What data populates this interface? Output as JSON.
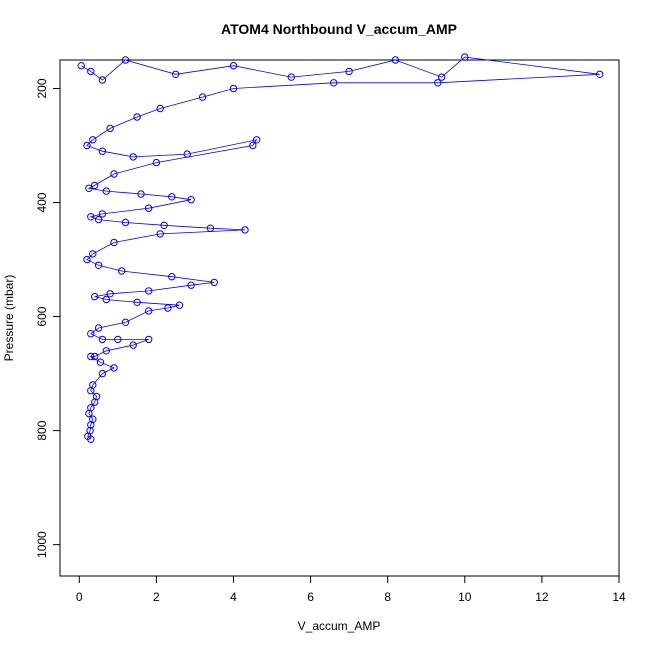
{
  "chart_data": {
    "type": "scatter",
    "title": "ATOM4 Northbound V_accum_AMP",
    "xlabel": "V_accum_AMP",
    "ylabel": "Pressure (mbar)",
    "xlim": [
      -0.5,
      14
    ],
    "ylim": [
      1055,
      150
    ],
    "y_reversed": true,
    "x_ticks": [
      0,
      2,
      4,
      6,
      8,
      10,
      12,
      14
    ],
    "y_ticks": [
      200,
      400,
      600,
      800,
      1000
    ],
    "x_tick_labels": [
      "0",
      "2",
      "4",
      "6",
      "8",
      "10",
      "12",
      "14"
    ],
    "y_tick_labels": [
      "200",
      "400",
      "600",
      "800",
      "1000"
    ],
    "grid": false,
    "legend": "none",
    "marker": "open-circle",
    "connect_points": true,
    "color": "#0000ff",
    "series": [
      {
        "x": [
          0.05,
          0.3,
          0.6,
          1.2,
          2.5,
          4.0,
          5.5,
          7.0,
          8.2,
          9.4,
          10.0,
          13.5,
          9.3,
          6.6,
          4.0,
          3.2,
          2.1,
          1.5,
          0.8,
          0.35,
          0.2,
          0.6,
          1.4,
          2.8,
          4.6,
          4.5,
          2.0,
          0.9,
          0.4,
          0.25,
          0.7,
          1.6,
          2.4,
          2.9,
          1.8,
          0.6,
          0.3,
          0.5,
          1.2,
          2.2,
          3.4,
          4.3,
          2.1,
          0.9,
          0.35,
          0.2,
          0.5,
          1.1,
          2.4,
          3.5,
          2.9,
          1.8,
          0.8,
          0.4,
          0.7,
          1.5,
          2.6,
          2.3,
          1.8,
          1.2,
          0.5,
          0.3,
          0.6,
          1.0,
          1.8,
          1.4,
          0.7,
          0.4,
          0.3,
          0.55,
          0.9,
          0.6,
          0.35,
          0.3,
          0.45,
          0.4,
          0.3,
          0.25,
          0.35,
          0.3,
          0.28,
          0.22,
          0.3
        ],
        "y": [
          160,
          170,
          185,
          150,
          175,
          160,
          180,
          170,
          150,
          180,
          145,
          175,
          190,
          190,
          200,
          215,
          235,
          250,
          270,
          290,
          300,
          310,
          320,
          315,
          290,
          300,
          330,
          350,
          370,
          375,
          380,
          385,
          390,
          395,
          410,
          420,
          425,
          430,
          435,
          440,
          445,
          448,
          455,
          470,
          490,
          500,
          510,
          520,
          530,
          540,
          545,
          555,
          560,
          565,
          570,
          575,
          580,
          585,
          590,
          610,
          620,
          630,
          640,
          640,
          640,
          650,
          660,
          670,
          670,
          680,
          690,
          700,
          720,
          730,
          740,
          750,
          760,
          770,
          780,
          790,
          800,
          810,
          815
        ]
      }
    ]
  }
}
